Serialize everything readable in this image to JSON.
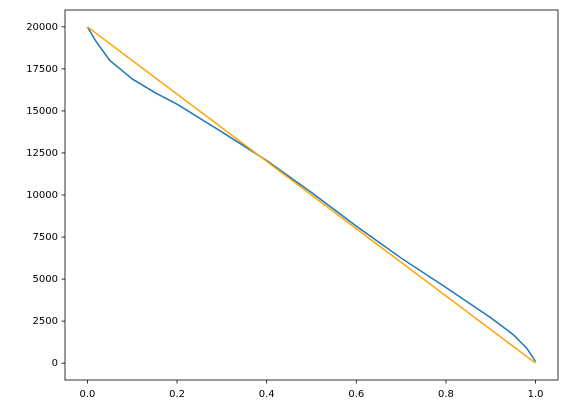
{
  "chart_data": {
    "type": "line",
    "series": [
      {
        "color": "#1f77b4",
        "x": [
          0,
          0.02,
          0.05,
          0.1,
          0.15,
          0.2,
          0.3,
          0.4,
          0.5,
          0.6,
          0.7,
          0.8,
          0.9,
          0.95,
          0.98,
          1.0
        ],
        "values": [
          20000,
          19100,
          18000,
          16900,
          16100,
          15400,
          13750,
          12050,
          10150,
          8150,
          6250,
          4500,
          2700,
          1700,
          900,
          100
        ]
      },
      {
        "color": "#ffa500",
        "x": [
          0,
          1
        ],
        "values": [
          20000,
          0
        ]
      }
    ],
    "xlim": [
      -0.05,
      1.05
    ],
    "xticks": [
      {
        "value": 0,
        "label": "0.0"
      },
      {
        "value": 0.2,
        "label": "0.2"
      },
      {
        "value": 0.4,
        "label": "0.4"
      },
      {
        "value": 0.6,
        "label": "0.6"
      },
      {
        "value": 0.8,
        "label": "0.8"
      },
      {
        "value": 1,
        "label": "1.0"
      }
    ],
    "ylim": [
      -1000,
      21000
    ],
    "yticks": [
      0,
      2500,
      5000,
      7500,
      10000,
      12500,
      15000,
      17500,
      20000
    ],
    "grid": false
  }
}
